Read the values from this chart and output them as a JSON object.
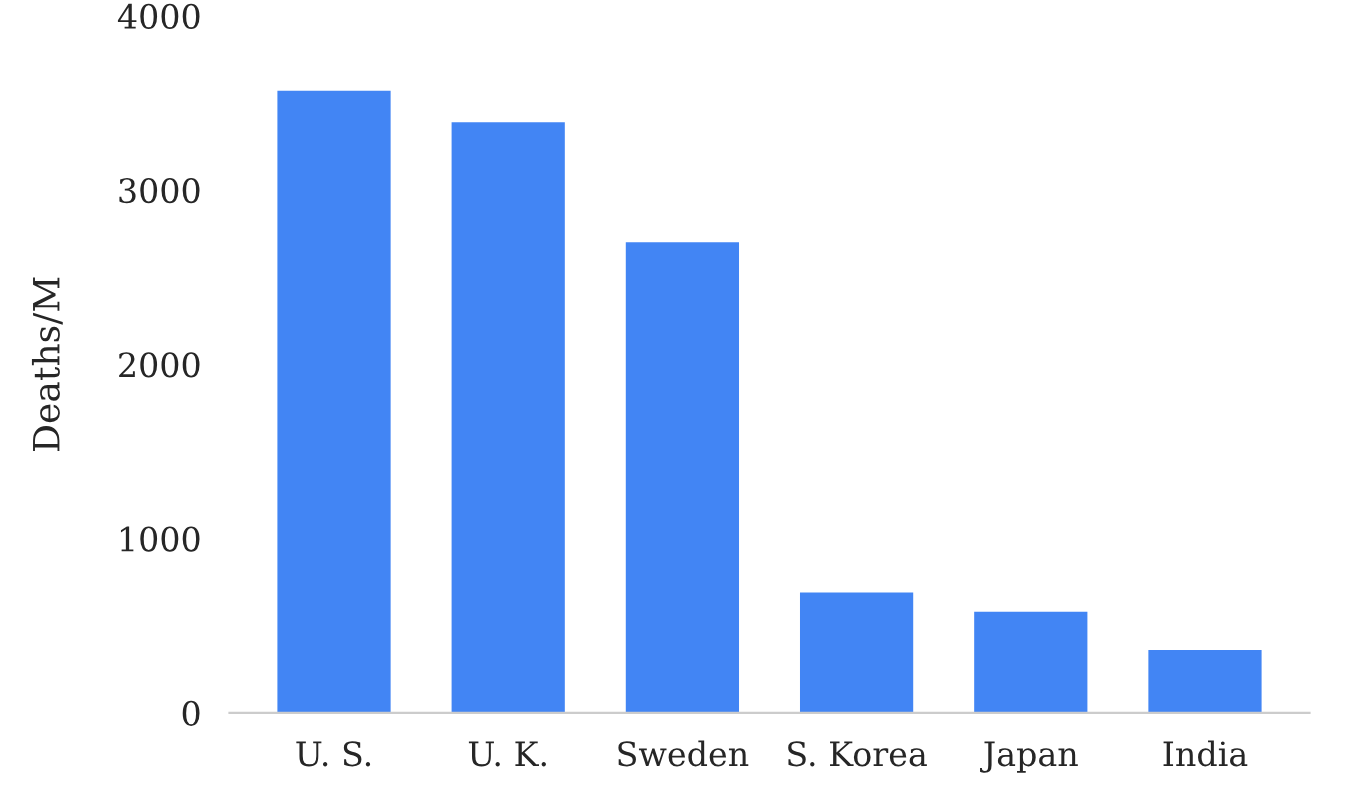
{
  "chart_data": {
    "type": "bar",
    "ylabel": "Deaths/M",
    "categories": [
      "U. S.",
      "U. K.",
      "Sweden",
      "S. Korea",
      "Japan",
      "India"
    ],
    "values": [
      3570,
      3390,
      2700,
      690,
      580,
      360
    ],
    "color": "#4285f4",
    "ylim": [
      0,
      4000
    ],
    "yticks": [
      0,
      1000,
      2000,
      3000,
      4000
    ],
    "grid": false
  }
}
